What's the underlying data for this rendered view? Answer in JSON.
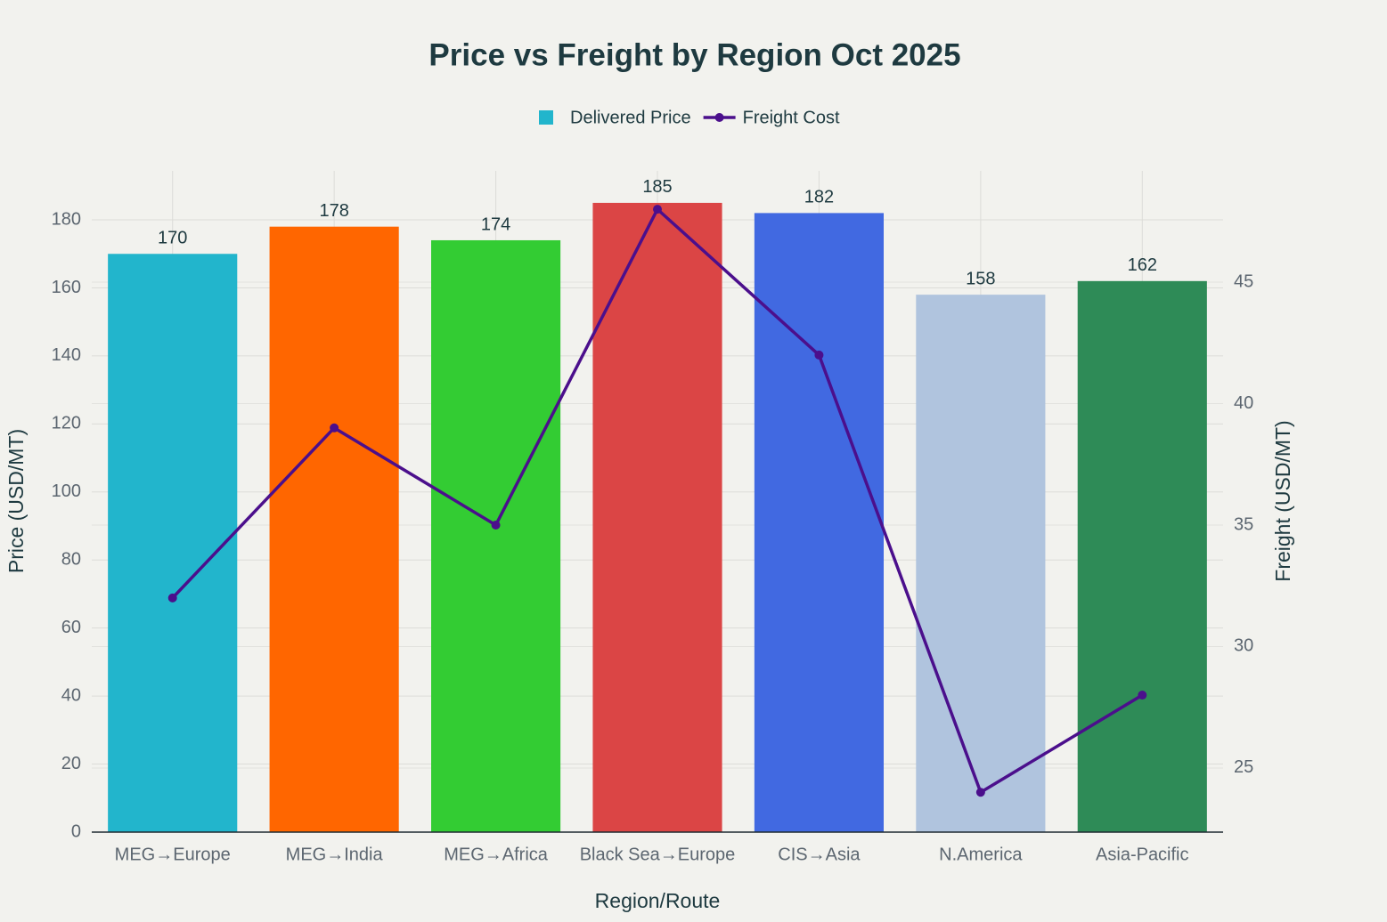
{
  "chart_data": {
    "type": "bar_line",
    "title": "Price vs Freight by Region Oct 2025",
    "x_label": "Region/Route",
    "y_label": "Price (USD/MT)",
    "y2_label": "Freight (USD/MT)",
    "categories": [
      "MEG→Europe",
      "MEG→India",
      "MEG→Africa",
      "Black Sea→Europe",
      "CIS→Asia",
      "N.America",
      "Asia-Pacific"
    ],
    "series": [
      {
        "name": "Delivered Price",
        "type": "bar",
        "color": "#22b5cc",
        "colors": [
          "#22b5cc",
          "#ff6600",
          "#33cc33",
          "#db4545",
          "#4169e1",
          "#b0c4de",
          "#2e8b57"
        ],
        "values": [
          170,
          178,
          174,
          185,
          182,
          158,
          162
        ]
      },
      {
        "name": "Freight Cost",
        "type": "line",
        "axis": "y2",
        "color": "#4b0f8c",
        "values": [
          32,
          39,
          35,
          48,
          42,
          24,
          28
        ]
      }
    ],
    "ylim": [
      0,
      194.4
    ],
    "yticks": [
      0,
      20,
      40,
      60,
      80,
      100,
      120,
      140,
      160,
      180
    ],
    "y2lim": [
      22.36,
      49.58
    ],
    "y2ticks": [
      25,
      30,
      35,
      40,
      45
    ],
    "grid": true,
    "legend": "top"
  }
}
